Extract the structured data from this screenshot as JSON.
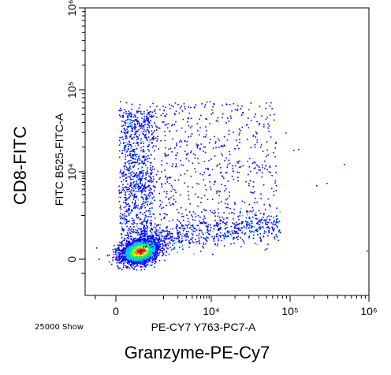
{
  "outer_labels": {
    "y_label": "CD8-FITC",
    "x_label": "Granzyme-PE-Cy7"
  },
  "footer_note": "25000 Show",
  "chart_data": {
    "type": "scatter",
    "title": "",
    "xlabel": "PE-CY7 Y763-PC7-A",
    "ylabel": "FITC B525-FITC-A",
    "x_scale": "biexponential",
    "y_scale": "biexponential",
    "xlim": [
      -1500,
      1000000
    ],
    "ylim": [
      -1500,
      1000000
    ],
    "x_tick_labels": [
      "0",
      "10⁴",
      "10⁵",
      "10⁶"
    ],
    "y_tick_labels": [
      "0",
      "10⁴",
      "10⁵",
      "10⁶"
    ],
    "grid": false,
    "event_count": 25000,
    "populations": [
      {
        "name": "",
        "description": "dense CD8- granzyme low cluster",
        "x_center": 500,
        "y_center": 200,
        "share": 0.62
      },
      {
        "name": "",
        "description": "CD8+ granzyme low column",
        "x_center": 500,
        "y_center": 20000,
        "share": 0.14
      },
      {
        "name": "",
        "description": "CD8+ granzyme spread",
        "x_center": 8000,
        "y_center": 15000,
        "share": 0.12
      },
      {
        "name": "",
        "description": "CD8- granzyme high tail",
        "x_center": 12000,
        "y_center": 900,
        "share": 0.12
      }
    ],
    "colormap": [
      "#0000ff",
      "#00c0ff",
      "#00ff60",
      "#ffff00",
      "#ff8000",
      "#ff0000"
    ]
  }
}
